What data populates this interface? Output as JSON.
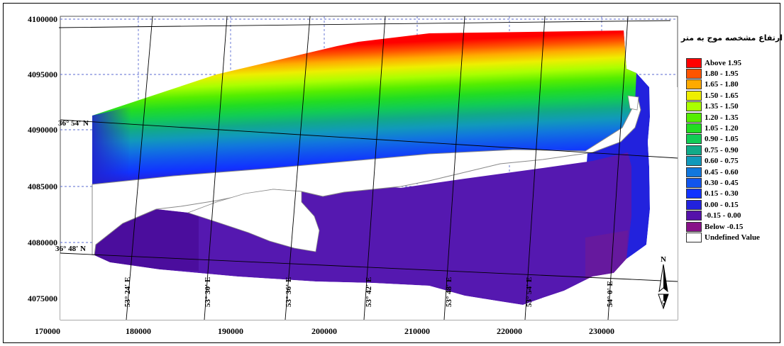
{
  "map": {
    "x_ticks": [
      "170000",
      "180000",
      "190000",
      "200000",
      "210000",
      "220000",
      "230000"
    ],
    "y_ticks": [
      "4100000",
      "4095000",
      "4090000",
      "4085000",
      "4080000",
      "4075000"
    ],
    "lat_labels": [
      "36° 54' N",
      "36° 48' N"
    ],
    "lon_labels": [
      "53° 24' E",
      "53° 30' E",
      "53° 36' E",
      "53° 42' E",
      "53° 48' E",
      "53° 54' E",
      "54° 0' E"
    ],
    "north_label": "N"
  },
  "legend": {
    "title": "ارتفاع مشخصه موج به متر",
    "items": [
      {
        "label": "Above  1.95",
        "color": "#ff0000"
      },
      {
        "label": "1.80 -  1.95",
        "color": "#ff5500"
      },
      {
        "label": "1.65 -  1.80",
        "color": "#ffaa00"
      },
      {
        "label": "1.50 -  1.65",
        "color": "#eeee00"
      },
      {
        "label": "1.35 -  1.50",
        "color": "#aaff00"
      },
      {
        "label": "1.20 -  1.35",
        "color": "#55ee00"
      },
      {
        "label": "1.05 -  1.20",
        "color": "#22dd22"
      },
      {
        "label": "0.90 -  1.05",
        "color": "#11cc55"
      },
      {
        "label": "0.75 -  0.90",
        "color": "#11aa88"
      },
      {
        "label": "0.60 -  0.75",
        "color": "#1199bb"
      },
      {
        "label": "0.45 -  0.60",
        "color": "#1177dd"
      },
      {
        "label": "0.30 -  0.45",
        "color": "#1155ee"
      },
      {
        "label": "0.15 -  0.30",
        "color": "#1133ff"
      },
      {
        "label": "0.00 -  0.15",
        "color": "#2222dd"
      },
      {
        "label": "-0.15 -  0.00",
        "color": "#5511aa"
      },
      {
        "label": "Below -0.15",
        "color": "#881188"
      },
      {
        "label": "Undefined Value",
        "color": "#ffffff"
      }
    ]
  }
}
